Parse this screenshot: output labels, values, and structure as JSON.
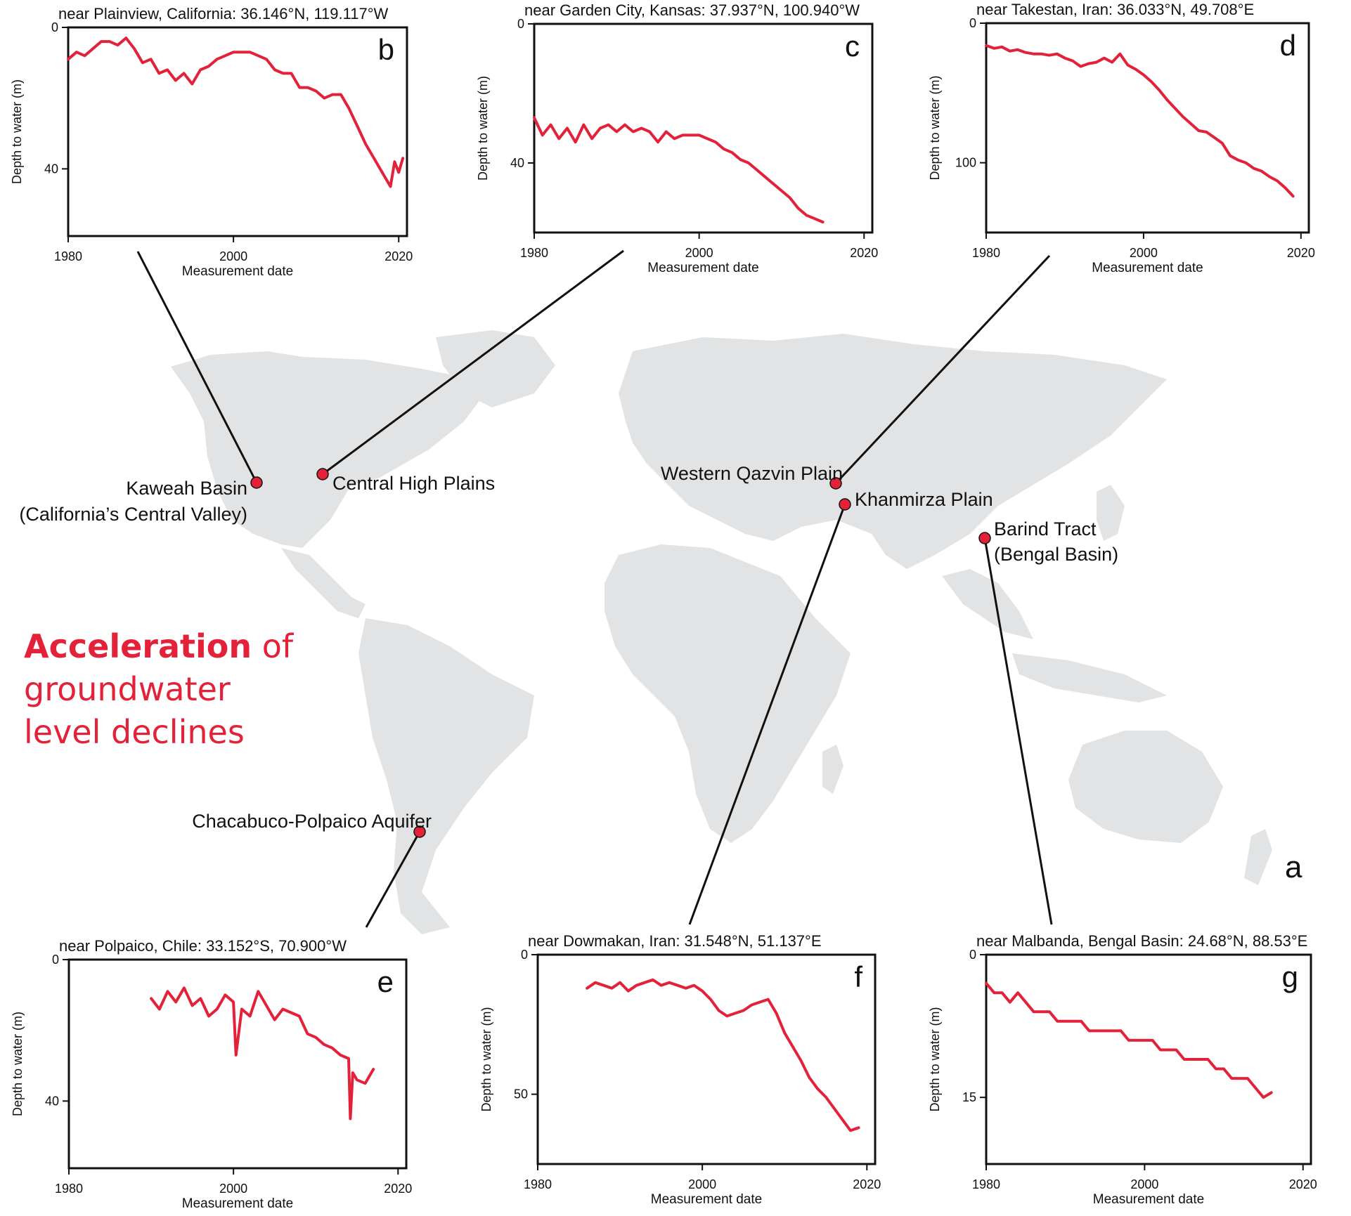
{
  "headline": {
    "bold_part": "Acceleration",
    "rest_line1": " of",
    "line2": "groundwater",
    "line3": "level declines"
  },
  "map": {
    "panel_letter": "a",
    "land_color": "#e2e3e4",
    "marker_color": "#e3223a",
    "sites": [
      {
        "id": "kaweah",
        "label_lines": [
          "Kaweah Basin",
          "(California’s Central Valley)"
        ]
      },
      {
        "id": "chp",
        "label_lines": [
          "Central High Plains"
        ]
      },
      {
        "id": "qazvin",
        "label_lines": [
          "Western Qazvin Plain"
        ]
      },
      {
        "id": "khanmirza",
        "label_lines": [
          "Khanmirza Plain"
        ]
      },
      {
        "id": "barind",
        "label_lines": [
          "Barind Tract",
          "(Bengal Basin)"
        ]
      },
      {
        "id": "chacabuco",
        "label_lines": [
          "Chacabuco-Polpaico Aquifer"
        ]
      }
    ]
  },
  "chart_data": [
    {
      "type": "line",
      "panel": "b",
      "title": "near Plainview, California: 36.146°N, 119.117°W",
      "xlabel": "Measurement date",
      "ylabel": "Depth to water (m)",
      "xlim": [
        1980,
        2021
      ],
      "ylim": [
        0,
        59
      ],
      "y_inverted": true,
      "xticks": [
        1980,
        2000,
        2020
      ],
      "yticks": [
        0,
        40
      ],
      "series": [
        {
          "color": "#e3223a",
          "x": [
            1980,
            1981,
            1982,
            1983,
            1984,
            1985,
            1986,
            1987,
            1988,
            1989,
            1990,
            1991,
            1992,
            1993,
            1994,
            1995,
            1996,
            1997,
            1998,
            1999,
            2000,
            2001,
            2002,
            2003,
            2004,
            2005,
            2006,
            2007,
            2008,
            2009,
            2010,
            2011,
            2012,
            2013,
            2014,
            2015,
            2016,
            2017,
            2018,
            2019,
            2019.5,
            2020,
            2020.5
          ],
          "y": [
            9,
            7,
            8,
            6,
            4,
            4,
            5,
            3,
            6,
            10,
            9,
            13,
            12,
            15,
            13,
            16,
            12,
            11,
            9,
            8,
            7,
            7,
            7,
            8,
            9,
            12,
            13,
            13,
            17,
            17,
            18,
            20,
            19,
            19,
            23,
            28,
            33,
            37,
            41,
            45,
            38,
            41,
            37
          ]
        }
      ]
    },
    {
      "type": "line",
      "panel": "c",
      "title": "near Garden City, Kansas: 37.937°N, 100.940°W",
      "xlabel": "Measurement date",
      "ylabel": "Depth to water (m)",
      "xlim": [
        1980,
        2021
      ],
      "ylim": [
        0,
        60
      ],
      "y_inverted": true,
      "xticks": [
        1980,
        2000,
        2020
      ],
      "yticks": [
        0,
        40
      ],
      "series": [
        {
          "color": "#e3223a",
          "x": [
            1980,
            1981,
            1982,
            1983,
            1984,
            1985,
            1986,
            1987,
            1988,
            1989,
            1990,
            1991,
            1992,
            1993,
            1994,
            1995,
            1996,
            1997,
            1998,
            1999,
            2000,
            2001,
            2002,
            2003,
            2004,
            2005,
            2006,
            2007,
            2008,
            2009,
            2010,
            2011,
            2012,
            2013,
            2014,
            2015
          ],
          "y": [
            27,
            32,
            29,
            33,
            30,
            34,
            29,
            33,
            30,
            29,
            31,
            29,
            31,
            30,
            31,
            34,
            31,
            33,
            32,
            32,
            32,
            33,
            34,
            36,
            37,
            39,
            40,
            42,
            44,
            46,
            48,
            50,
            53,
            55,
            56,
            57
          ]
        }
      ]
    },
    {
      "type": "line",
      "panel": "d",
      "title": "near Takestan, Iran: 36.033°N, 49.708°E",
      "xlabel": "Measurement date",
      "ylabel": "Depth to water (m)",
      "xlim": [
        1980,
        2021
      ],
      "ylim": [
        0,
        150
      ],
      "y_inverted": true,
      "xticks": [
        1980,
        2000,
        2020
      ],
      "yticks": [
        0,
        100
      ],
      "series": [
        {
          "color": "#e3223a",
          "x": [
            1980,
            1981,
            1982,
            1983,
            1984,
            1985,
            1986,
            1987,
            1988,
            1989,
            1990,
            1991,
            1992,
            1993,
            1994,
            1995,
            1996,
            1997,
            1998,
            1999,
            2000,
            2001,
            2002,
            2003,
            2004,
            2005,
            2006,
            2007,
            2008,
            2009,
            2010,
            2011,
            2012,
            2013,
            2014,
            2015,
            2016,
            2017,
            2018,
            2019
          ],
          "y": [
            16,
            18,
            17,
            20,
            19,
            21,
            22,
            22,
            23,
            22,
            25,
            27,
            31,
            29,
            28,
            25,
            28,
            22,
            30,
            33,
            37,
            42,
            48,
            55,
            61,
            67,
            72,
            77,
            78,
            82,
            86,
            95,
            98,
            100,
            104,
            106,
            110,
            113,
            118,
            124
          ]
        }
      ]
    },
    {
      "type": "line",
      "panel": "e",
      "title": "near Polpaico, Chile: 33.152°S, 70.900°W",
      "xlabel": "Measurement date",
      "ylabel": "Depth to water (m)",
      "xlim": [
        1980,
        2021
      ],
      "ylim": [
        0,
        59
      ],
      "y_inverted": true,
      "xticks": [
        1980,
        2000,
        2020
      ],
      "yticks": [
        0,
        40
      ],
      "series": [
        {
          "color": "#e3223a",
          "x": [
            1990,
            1991,
            1992,
            1993,
            1994,
            1995,
            1996,
            1997,
            1998,
            1999,
            2000,
            2000.3,
            2001,
            2002,
            2003,
            2004,
            2005,
            2006,
            2007,
            2008,
            2009,
            2010,
            2011,
            2012,
            2013,
            2014,
            2014.2,
            2014.5,
            2015,
            2016,
            2017
          ],
          "y": [
            11,
            14,
            9,
            12,
            8,
            13,
            11,
            16,
            14,
            10,
            12,
            27,
            14,
            16,
            9,
            13,
            17,
            14,
            15,
            16,
            21,
            22,
            24,
            25,
            27,
            28,
            45,
            32,
            34,
            35,
            31
          ]
        }
      ]
    },
    {
      "type": "line",
      "panel": "f",
      "title": "near Dowmakan, Iran: 31.548°N, 51.137°E",
      "xlabel": "Measurement date",
      "ylabel": "Depth to water (m)",
      "xlim": [
        1980,
        2021
      ],
      "ylim": [
        0,
        75
      ],
      "y_inverted": true,
      "xticks": [
        1980,
        2000,
        2020
      ],
      "yticks": [
        0,
        50
      ],
      "series": [
        {
          "color": "#e3223a",
          "x": [
            1986,
            1987,
            1988,
            1989,
            1990,
            1991,
            1992,
            1993,
            1994,
            1995,
            1996,
            1997,
            1998,
            1999,
            2000,
            2001,
            2002,
            2003,
            2004,
            2005,
            2006,
            2007,
            2008,
            2009,
            2010,
            2011,
            2012,
            2013,
            2014,
            2015,
            2016,
            2017,
            2018,
            2019
          ],
          "y": [
            12,
            10,
            11,
            12,
            10,
            13,
            11,
            10,
            9,
            11,
            10,
            11,
            12,
            11,
            13,
            16,
            20,
            22,
            21,
            20,
            18,
            17,
            16,
            21,
            28,
            33,
            38,
            44,
            48,
            51,
            55,
            59,
            63,
            62
          ]
        }
      ]
    },
    {
      "type": "line",
      "panel": "g",
      "title": "near Malbanda, Bengal Basin: 24.68°N, 88.53°E",
      "xlabel": "Measurement date",
      "ylabel": "Depth to water (m)",
      "xlim": [
        1980,
        2021
      ],
      "ylim": [
        0,
        22
      ],
      "y_inverted": true,
      "xticks": [
        1980,
        2000,
        2020
      ],
      "yticks": [
        0,
        15
      ],
      "series": [
        {
          "color": "#e3223a",
          "x": [
            1980,
            1981,
            1982,
            1983,
            1984,
            1985,
            1986,
            1987,
            1988,
            1989,
            1990,
            1991,
            1992,
            1993,
            1994,
            1995,
            1996,
            1997,
            1998,
            1999,
            2000,
            2001,
            2002,
            2003,
            2004,
            2005,
            2006,
            2007,
            2008,
            2009,
            2010,
            2011,
            2012,
            2013,
            2014,
            2015,
            2016
          ],
          "y": [
            3,
            4,
            4,
            5,
            4,
            5,
            6,
            6,
            6,
            7,
            7,
            7,
            7,
            8,
            8,
            8,
            8,
            8,
            9,
            9,
            9,
            9,
            10,
            10,
            10,
            11,
            11,
            11,
            11,
            12,
            12,
            13,
            13,
            13,
            14,
            15,
            14.5
          ]
        }
      ]
    }
  ]
}
